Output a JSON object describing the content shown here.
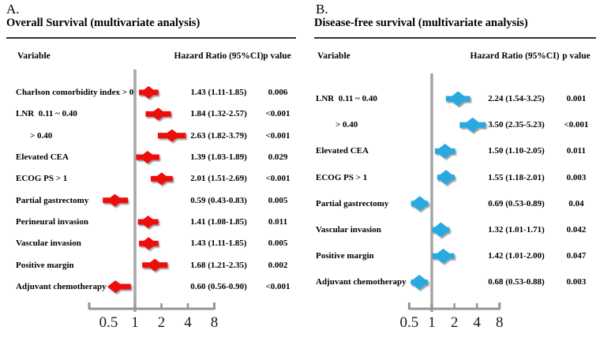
{
  "figure": {
    "background": "#ffffff",
    "line_gray": "#949494",
    "rule_color": "#333333"
  },
  "chart_data": [
    {
      "type": "forest",
      "panel_letter": "A.",
      "title": "Overall Survival (multivariate analysis)",
      "columns": {
        "variable": "Variable",
        "hazard_ratio": "Hazard Ratio (95%CI)",
        "p_value": "p value"
      },
      "marker_color": "#ed0c0c",
      "axis": {
        "scale": "log2",
        "range": [
          0.5,
          8
        ],
        "reference_line": 1,
        "tick_values": [
          0.5,
          1,
          2,
          4,
          8
        ],
        "tick_labels": [
          "0.5",
          "1",
          "2",
          "4",
          "8"
        ]
      },
      "rows": [
        {
          "label": "Charlson comorbidity index > 0",
          "indent": false,
          "hr": 1.43,
          "ci_low": 1.11,
          "ci_high": 1.85,
          "hr_text": "1.43 (1.11-1.85)",
          "p_text": "0.006"
        },
        {
          "label": "LNR  0.11 ~ 0.40",
          "indent": false,
          "hr": 1.84,
          "ci_low": 1.32,
          "ci_high": 2.57,
          "hr_text": "1.84 (1.32-2.57)",
          "p_text": "<0.001"
        },
        {
          "label": "> 0.40",
          "indent": true,
          "hr": 2.63,
          "ci_low": 1.82,
          "ci_high": 3.79,
          "hr_text": "2.63 (1.82-3.79)",
          "p_text": "<0.001"
        },
        {
          "label": "Elevated CEA",
          "indent": false,
          "hr": 1.39,
          "ci_low": 1.03,
          "ci_high": 1.89,
          "hr_text": "1.39 (1.03-1.89)",
          "p_text": "0.029"
        },
        {
          "label": "ECOG PS > 1",
          "indent": false,
          "hr": 2.01,
          "ci_low": 1.51,
          "ci_high": 2.69,
          "hr_text": "2.01 (1.51-2.69)",
          "p_text": "<0.001"
        },
        {
          "label": "Partial gastrectomy",
          "indent": false,
          "hr": 0.59,
          "ci_low": 0.43,
          "ci_high": 0.83,
          "hr_text": "0.59 (0.43-0.83)",
          "p_text": "0.005"
        },
        {
          "label": "Perineural invasion",
          "indent": false,
          "hr": 1.41,
          "ci_low": 1.08,
          "ci_high": 1.85,
          "hr_text": "1.41 (1.08-1.85)",
          "p_text": "0.011"
        },
        {
          "label": "Vascular invasion",
          "indent": false,
          "hr": 1.43,
          "ci_low": 1.11,
          "ci_high": 1.85,
          "hr_text": "1.43 (1.11-1.85)",
          "p_text": "0.005"
        },
        {
          "label": "Positive margin",
          "indent": false,
          "hr": 1.68,
          "ci_low": 1.21,
          "ci_high": 2.35,
          "hr_text": "1.68 (1.21-2.35)",
          "p_text": "0.002"
        },
        {
          "label": "Adjuvant chemotherapy",
          "indent": false,
          "hr": 0.6,
          "ci_low": 0.56,
          "ci_high": 0.9,
          "hr_text": "0.60 (0.56-0.90)",
          "p_text": "<0.001"
        }
      ]
    },
    {
      "type": "forest",
      "panel_letter": "B.",
      "title": "Disease-free survival (multivariate analysis)",
      "columns": {
        "variable": "Variable",
        "hazard_ratio": "Hazard Ratio (95%CI)",
        "p_value": "p value"
      },
      "marker_color": "#29a8e0",
      "axis": {
        "scale": "log2",
        "range": [
          0.5,
          8
        ],
        "reference_line": 1,
        "tick_values": [
          0.5,
          1,
          2,
          4,
          8
        ],
        "tick_labels": [
          "0.5",
          "1",
          "2",
          "4",
          "8"
        ]
      },
      "rows": [
        {
          "label": "LNR  0.11 ~ 0.40",
          "indent": false,
          "hr": 2.24,
          "ci_low": 1.54,
          "ci_high": 3.25,
          "hr_text": "2.24 (1.54-3.25)",
          "p_text": "0.001"
        },
        {
          "label": "> 0.40",
          "indent": true,
          "hr": 3.5,
          "ci_low": 2.35,
          "ci_high": 5.23,
          "hr_text": "3.50 (2.35-5.23)",
          "p_text": "<0.001"
        },
        {
          "label": "Elevated CEA",
          "indent": false,
          "hr": 1.5,
          "ci_low": 1.1,
          "ci_high": 2.05,
          "hr_text": "1.50 (1.10-2.05)",
          "p_text": "0.011"
        },
        {
          "label": "ECOG PS > 1",
          "indent": false,
          "hr": 1.55,
          "ci_low": 1.18,
          "ci_high": 2.01,
          "hr_text": "1.55 (1.18-2.01)",
          "p_text": "0.003"
        },
        {
          "label": "Partial gastrectomy",
          "indent": false,
          "hr": 0.69,
          "ci_low": 0.53,
          "ci_high": 0.89,
          "hr_text": "0.69 (0.53-0.89)",
          "p_text": "0.04"
        },
        {
          "label": "Vascular invasion",
          "indent": false,
          "hr": 1.32,
          "ci_low": 1.01,
          "ci_high": 1.71,
          "hr_text": "1.32 (1.01-1.71)",
          "p_text": "0.042"
        },
        {
          "label": "Positive margin",
          "indent": false,
          "hr": 1.42,
          "ci_low": 1.01,
          "ci_high": 2.0,
          "hr_text": "1.42 (1.01-2.00)",
          "p_text": "0.047"
        },
        {
          "label": "Adjuvant chemotherapy",
          "indent": false,
          "hr": 0.68,
          "ci_low": 0.53,
          "ci_high": 0.88,
          "hr_text": "0.68 (0.53-0.88)",
          "p_text": "0.003"
        }
      ]
    }
  ]
}
